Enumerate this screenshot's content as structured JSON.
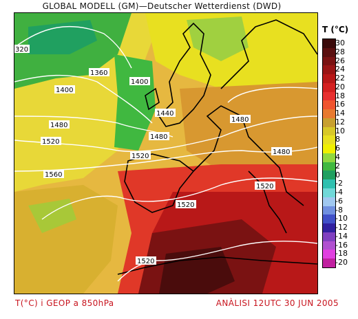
{
  "header": {
    "title": "GLOBAL MODELL (GM)—Deutscher Wetterdienst (DWD)"
  },
  "legend": {
    "title": "T (°C)",
    "values": [
      "30",
      "28",
      "26",
      "24",
      "22",
      "20",
      "18",
      "16",
      "14",
      "12",
      "10",
      "8",
      "6",
      "4",
      "2",
      "0",
      "-2",
      "-4",
      "-6",
      "-8",
      "-10",
      "-12",
      "-14",
      "-16",
      "-18",
      "-20"
    ],
    "colors": [
      "#3a0a0a",
      "#5a0f0f",
      "#7a1212",
      "#9a1515",
      "#b81818",
      "#d42020",
      "#e83030",
      "#f05530",
      "#e87a30",
      "#c8a030",
      "#d8c828",
      "#e8e020",
      "#f0f000",
      "#90d840",
      "#40b840",
      "#20a060",
      "#30c0b0",
      "#70d8d8",
      "#a0c8f0",
      "#7090e0",
      "#4050c8",
      "#3020a0",
      "#8040c0",
      "#b050d0",
      "#e040e0",
      "#c020a0"
    ]
  },
  "contour_labels": [
    "320",
    "1360",
    "1400",
    "1400",
    "1440",
    "1480",
    "1480",
    "1480",
    "1480",
    "1520",
    "1520",
    "1520",
    "1520",
    "1560",
    "1520"
  ],
  "footer": {
    "left": "T(°C) i GEOP a 850hPa",
    "right": "ANÀLISI 12UTC 30 JUN 2005"
  },
  "colors": {
    "footer": "#c8141e"
  }
}
